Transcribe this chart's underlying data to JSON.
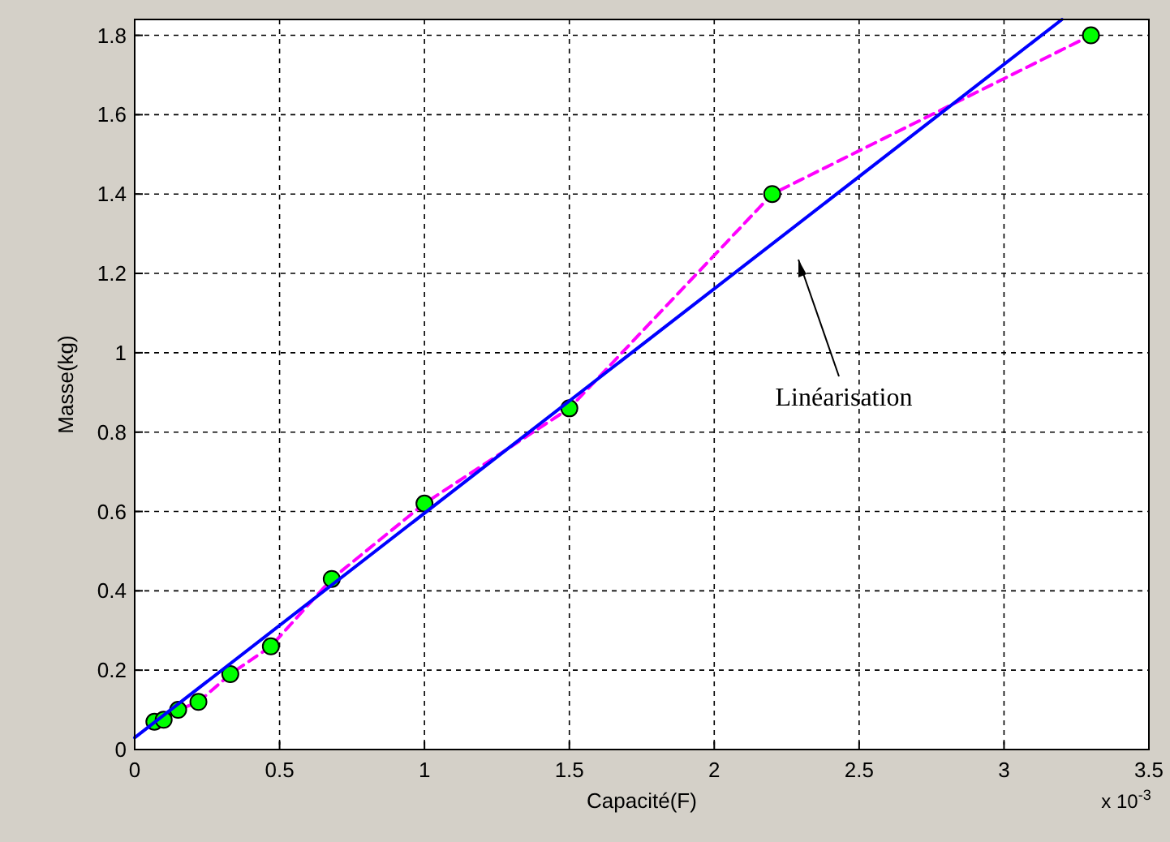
{
  "chart_data": {
    "type": "line",
    "xlabel": "Capacité(F)",
    "ylabel": "Masse(kg)",
    "xlim": [
      0,
      3.5
    ],
    "ylim": [
      0,
      1.84
    ],
    "xticks": [
      0,
      0.5,
      1,
      1.5,
      2,
      2.5,
      3,
      3.5
    ],
    "yticks": [
      0,
      0.2,
      0.4,
      0.6,
      0.8,
      1,
      1.2,
      1.4,
      1.6,
      1.8
    ],
    "grid": true,
    "series": [
      {
        "color": "#ff00ff",
        "line_style": "dashed",
        "marker": "circle",
        "x": [
          0.068,
          0.1,
          0.15,
          0.22,
          0.33,
          0.47,
          0.68,
          1.0,
          1.5,
          2.2,
          3.3
        ],
        "values": [
          0.07,
          0.075,
          0.1,
          0.12,
          0.19,
          0.26,
          0.43,
          0.62,
          0.86,
          1.4,
          1.8
        ]
      },
      {
        "color": "#0000ff",
        "line_style": "solid",
        "marker": "none",
        "x": [
          0,
          3.2
        ],
        "values": [
          0.03,
          1.84
        ]
      }
    ],
    "annotations": [
      "x 10$^{-3}$",
      "Linéarisation"
    ]
  }
}
